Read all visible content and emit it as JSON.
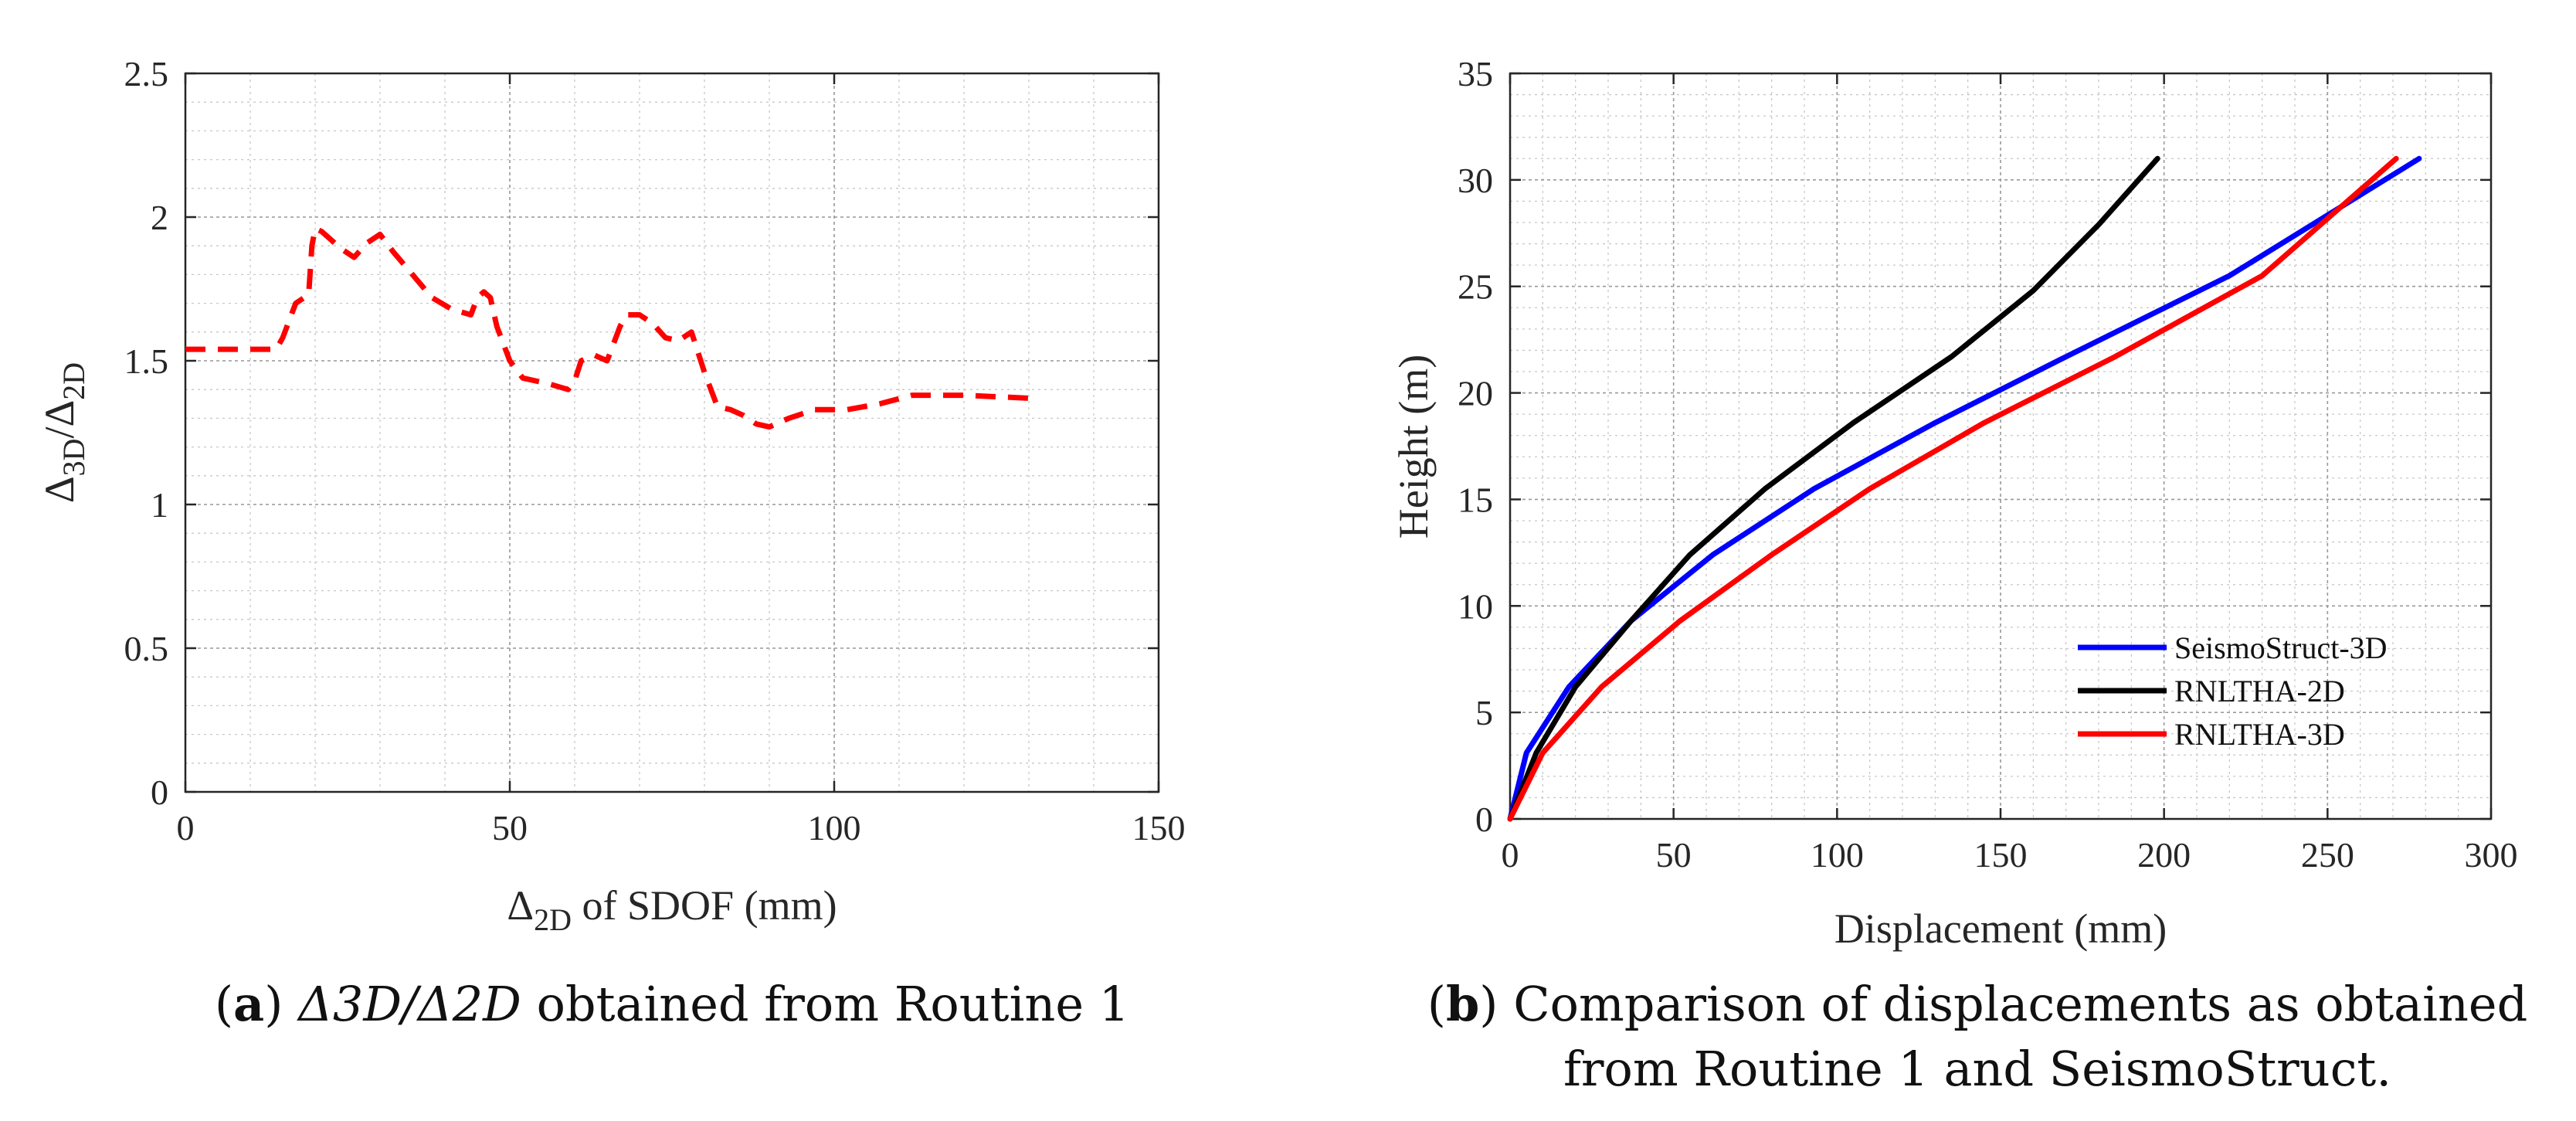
{
  "chart_data": [
    {
      "id": "a",
      "type": "line",
      "title": "",
      "xlabel": {
        "main": "Δ",
        "sub": "2D",
        "rest": " of SDOF (mm)"
      },
      "ylabel": {
        "p1": "Δ",
        "s1": "3D",
        "p2": "/Δ",
        "s2": "2D"
      },
      "xlim": [
        0,
        150
      ],
      "ylim": [
        0,
        2.5
      ],
      "xticks": [
        0,
        50,
        100,
        150
      ],
      "xtick_labels": [
        "0",
        "50",
        "100",
        "150"
      ],
      "yticks": [
        0,
        0.5,
        1,
        1.5,
        2,
        2.5
      ],
      "ytick_labels": [
        "0",
        "0.5",
        "1",
        "1.5",
        "2",
        "2.5"
      ],
      "grid": true,
      "series": [
        {
          "name": "Δ3D/Δ2D",
          "color": "#ff0000",
          "dashed": true,
          "x": [
            0,
            14,
            15,
            17,
            19,
            19.5,
            20,
            21,
            22,
            24,
            26,
            28,
            30,
            32,
            35,
            38,
            41,
            44,
            45,
            46,
            47,
            48,
            50,
            52,
            56,
            59,
            60,
            61,
            63,
            65,
            67,
            68,
            70,
            72,
            74,
            76,
            78,
            80,
            82,
            84,
            86,
            88,
            90,
            93,
            97,
            102,
            107,
            112,
            120,
            130
          ],
          "y": [
            1.54,
            1.54,
            1.58,
            1.7,
            1.73,
            1.9,
            1.96,
            1.95,
            1.93,
            1.89,
            1.86,
            1.91,
            1.94,
            1.88,
            1.8,
            1.72,
            1.68,
            1.66,
            1.72,
            1.74,
            1.72,
            1.62,
            1.5,
            1.44,
            1.42,
            1.4,
            1.43,
            1.5,
            1.52,
            1.5,
            1.62,
            1.66,
            1.66,
            1.63,
            1.58,
            1.57,
            1.6,
            1.46,
            1.34,
            1.33,
            1.31,
            1.28,
            1.27,
            1.3,
            1.33,
            1.33,
            1.35,
            1.38,
            1.38,
            1.37
          ]
        }
      ]
    },
    {
      "id": "b",
      "type": "line",
      "title": "",
      "xlabel": "Displacement (mm)",
      "ylabel": "Height (m)",
      "xlim": [
        0,
        300
      ],
      "ylim": [
        0,
        35
      ],
      "xticks": [
        0,
        50,
        100,
        150,
        200,
        250,
        300
      ],
      "xtick_labels": [
        "0",
        "50",
        "100",
        "150",
        "200",
        "250",
        "300"
      ],
      "yticks": [
        0,
        5,
        10,
        15,
        20,
        25,
        30,
        35
      ],
      "ytick_labels": [
        "0",
        "5",
        "10",
        "15",
        "20",
        "25",
        "30",
        "35"
      ],
      "grid": true,
      "legend_position": "bottom-right",
      "series": [
        {
          "name": "SeismoStruct-3D",
          "color": "#0000ff",
          "x": [
            0,
            5,
            18,
            37,
            62,
            93,
            130,
            170,
            220,
            278
          ],
          "y": [
            0,
            3.1,
            6.2,
            9.3,
            12.4,
            15.5,
            18.6,
            21.7,
            25.5,
            31
          ]
        },
        {
          "name": "RNLTHA-2D",
          "color": "#000000",
          "x": [
            0,
            8,
            20,
            37,
            55,
            78,
            105,
            135,
            160,
            180,
            198
          ],
          "y": [
            0,
            3.1,
            6.2,
            9.3,
            12.4,
            15.5,
            18.6,
            21.7,
            24.8,
            27.9,
            31
          ]
        },
        {
          "name": "RNLTHA-3D",
          "color": "#ff0000",
          "x": [
            0,
            10,
            28,
            52,
            80,
            110,
            145,
            185,
            230,
            271
          ],
          "y": [
            0,
            3.1,
            6.2,
            9.3,
            12.4,
            15.5,
            18.6,
            21.7,
            25.5,
            31
          ]
        }
      ]
    }
  ],
  "captions": {
    "a": {
      "label": "a",
      "pre": "(",
      "post": ")  ",
      "formula": "Δ3D/Δ2D",
      "rest": "  obtained from Routine 1"
    },
    "b": {
      "label": "b",
      "pre": "(",
      "post": ") ",
      "line1": "Comparison of displacements as obtained",
      "line2": "from Routine 1 and SeismoStruct."
    }
  }
}
